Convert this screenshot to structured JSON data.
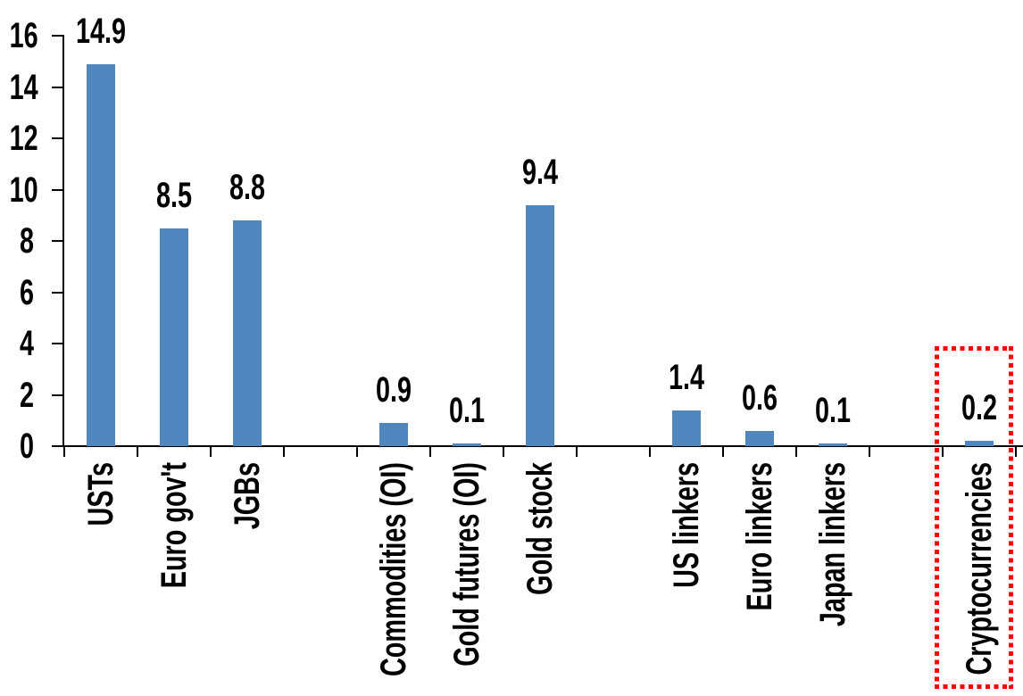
{
  "chart_data": {
    "type": "bar",
    "title": "",
    "xlabel": "",
    "ylabel": "",
    "categories": [
      "USTs",
      "Euro gov't",
      "JGBs",
      "Commodities (OI)",
      "Gold futures (OI)",
      "Gold stock",
      "US linkers",
      "Euro linkers",
      "Japan linkers",
      "Cryptocurrencies"
    ],
    "values": [
      14.9,
      8.5,
      8.8,
      0.9,
      0.1,
      9.4,
      1.4,
      0.6,
      0.1,
      0.2
    ],
    "value_labels": [
      "14.9",
      "8.5",
      "8.8",
      "0.9",
      "0.1",
      "9.4",
      "1.4",
      "0.6",
      "0.1",
      "0.2"
    ],
    "slots": [
      0,
      1,
      2,
      4,
      5,
      6,
      8,
      9,
      10,
      12
    ],
    "n_slots": 13,
    "ylim": [
      0,
      16
    ],
    "yticks": [
      0,
      2,
      4,
      6,
      8,
      10,
      12,
      14,
      16
    ],
    "grid": false,
    "legend": "none",
    "bar_color": "#4f86bd",
    "axis_color": "#000000",
    "text_color": "#000000",
    "highlight": {
      "category": "Cryptocurrencies",
      "style": "red-dotted-box",
      "color": "#ff0000",
      "label": "0.2"
    }
  }
}
